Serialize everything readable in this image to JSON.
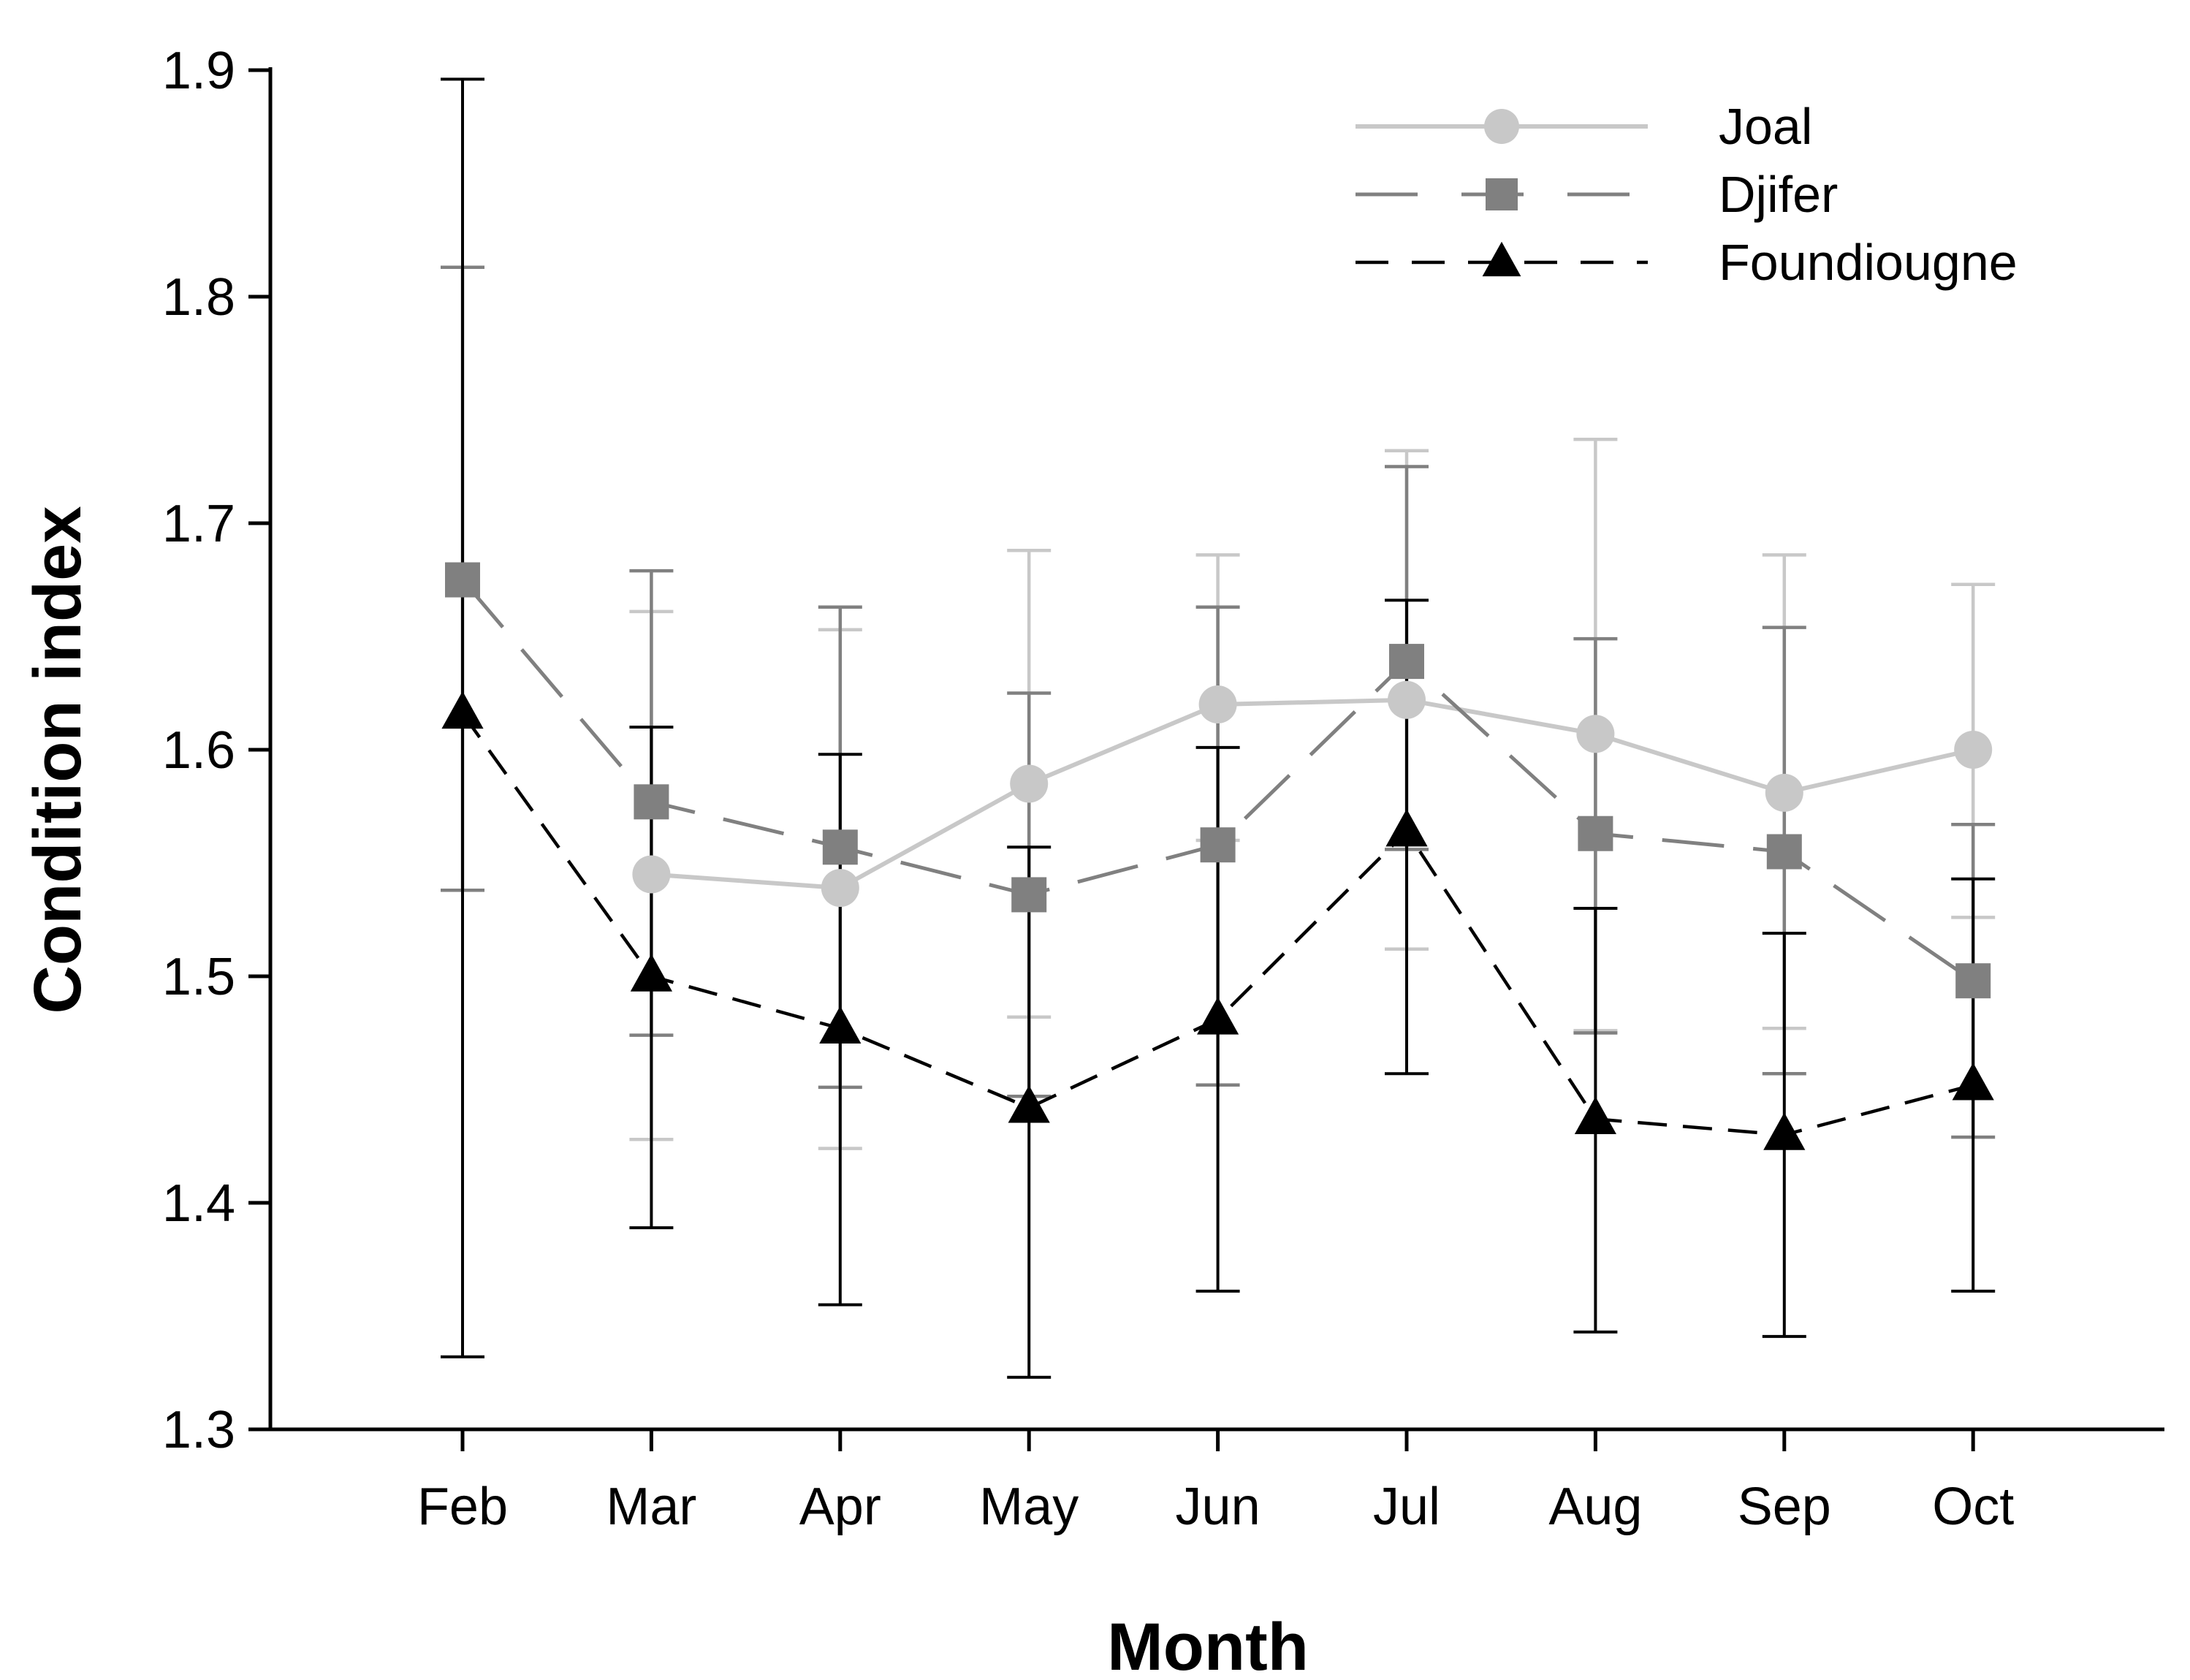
{
  "chart_data": {
    "type": "line",
    "title": "",
    "xlabel": "Month",
    "ylabel": "Condition index",
    "categories": [
      "Feb",
      "Mar",
      "Apr",
      "May",
      "Jun",
      "Jul",
      "Aug",
      "Sep",
      "Oct"
    ],
    "ylim": [
      1.3,
      1.9
    ],
    "yticks": [
      "1.3",
      "1.4",
      "1.5",
      "1.6",
      "1.7",
      "1.8",
      "1.9"
    ],
    "grid": false,
    "legend_position": "top-right",
    "series": [
      {
        "name": "Joal",
        "color": "#c8c8c8",
        "dash": "solid",
        "marker": "circle",
        "values": [
          null,
          1.545,
          1.539,
          1.585,
          1.62,
          1.622,
          1.607,
          1.581,
          1.6
        ],
        "err_lower": [
          null,
          1.428,
          1.424,
          1.482,
          1.56,
          1.512,
          1.476,
          1.477,
          1.526
        ],
        "err_upper": [
          null,
          1.661,
          1.653,
          1.688,
          1.686,
          1.732,
          1.737,
          1.686,
          1.673
        ]
      },
      {
        "name": "Djifer",
        "color": "#808080",
        "dash": "long-dash",
        "marker": "square",
        "values": [
          1.675,
          1.577,
          1.557,
          1.536,
          1.558,
          1.639,
          1.563,
          1.555,
          1.498
        ],
        "err_lower": [
          1.538,
          1.474,
          1.451,
          1.447,
          1.452,
          1.556,
          1.475,
          1.457,
          1.429
        ],
        "err_upper": [
          1.813,
          1.679,
          1.663,
          1.625,
          1.663,
          1.725,
          1.649,
          1.654,
          1.567
        ]
      },
      {
        "name": "Foundiougne",
        "color": "#000000",
        "dash": "short-dash",
        "marker": "triangle",
        "values": [
          1.616,
          1.5,
          1.477,
          1.442,
          1.481,
          1.564,
          1.437,
          1.43,
          1.452
        ],
        "err_lower": [
          1.332,
          1.389,
          1.355,
          1.323,
          1.361,
          1.457,
          1.343,
          1.341,
          1.361
        ],
        "err_upper": [
          1.896,
          1.61,
          1.598,
          1.557,
          1.601,
          1.666,
          1.53,
          1.519,
          1.543
        ]
      }
    ]
  }
}
